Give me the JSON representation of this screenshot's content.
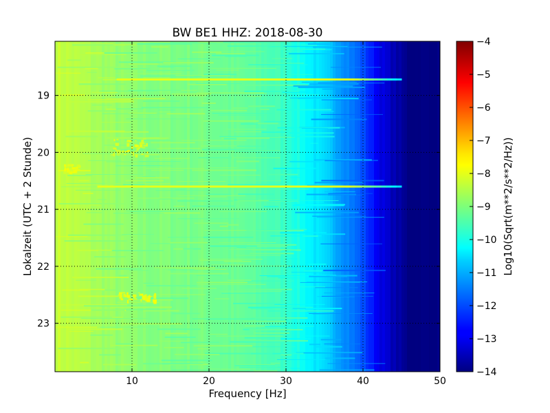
{
  "chart_data": {
    "type": "heatmap",
    "title": "BW BE1 HHZ: 2018-08-30",
    "xlabel": "Frequency [Hz]",
    "ylabel": "Lokalzeit (UTC + 2 Stunde)",
    "xlim": [
      0,
      50
    ],
    "ylim": [
      18.05,
      23.85
    ],
    "x_ticks": [
      10,
      20,
      30,
      40,
      50
    ],
    "y_ticks": [
      19,
      20,
      21,
      22,
      23
    ],
    "y_inverted": true,
    "grid": true,
    "colormap": "jet",
    "colorbar": {
      "label": "Log10(Sqrt(m**2/s**2/Hz))",
      "range": [
        -14,
        -4
      ],
      "ticks": [
        -4,
        -5,
        -6,
        -7,
        -8,
        -9,
        -10,
        -11,
        -12,
        -13,
        -14
      ]
    },
    "frequency_profile_hz": [
      0,
      2,
      5,
      8,
      10,
      15,
      20,
      25,
      28,
      30,
      32,
      34,
      36,
      38,
      40,
      42,
      44,
      46,
      50
    ],
    "frequency_profile_value": [
      -8.3,
      -8.4,
      -8.6,
      -8.8,
      -8.9,
      -9.0,
      -9.1,
      -9.3,
      -9.5,
      -9.7,
      -10.1,
      -10.5,
      -10.9,
      -11.4,
      -12.0,
      -12.9,
      -13.5,
      -14.0,
      -14.0
    ],
    "horizontal_lines": [
      {
        "time": 18.72,
        "from_hz": 8,
        "to_hz": 45,
        "value": -8.0
      },
      {
        "time": 20.6,
        "from_hz": 5.5,
        "to_hz": 45,
        "value": -8.0
      }
    ],
    "bright_patches": [
      {
        "time_range": [
          19.75,
          20.05
        ],
        "freq_range": [
          7,
          12
        ],
        "value": -8.0
      },
      {
        "time_range": [
          22.45,
          22.6
        ],
        "freq_range": [
          8,
          13
        ],
        "value": -7.9
      },
      {
        "time_range": [
          20.2,
          20.35
        ],
        "freq_range": [
          1,
          3
        ],
        "value": -8.0
      }
    ]
  }
}
